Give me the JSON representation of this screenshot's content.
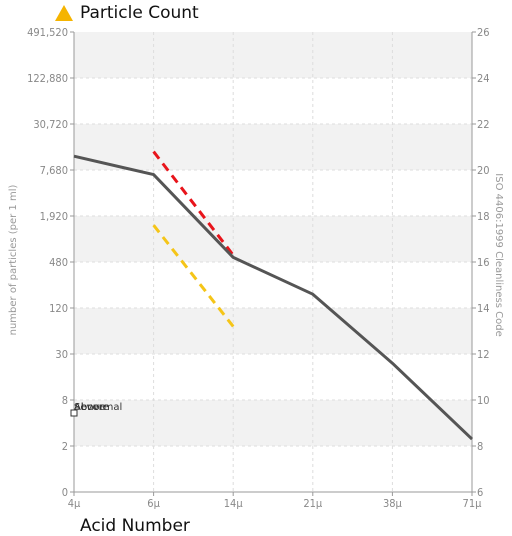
{
  "header": {
    "title": "Particle Count",
    "icon": "warning-triangle-icon",
    "icon_color": "#f5b400"
  },
  "footer": {
    "title": "Acid Number"
  },
  "legend": {
    "labels": [
      "Severe",
      "Abnormal",
      "Above"
    ]
  },
  "colors": {
    "series_line": "#555555",
    "severe_limit": "#e8141b",
    "caution_limit": "#f5c518",
    "band": "#f2f2f2",
    "grid": "#dddddd",
    "axis": "#999999"
  },
  "chart_data": {
    "type": "line",
    "x_categories": [
      "4μ",
      "6μ",
      "14μ",
      "21μ",
      "38μ",
      "71μ"
    ],
    "y_ticks": [
      "0",
      "2",
      "8",
      "30",
      "120",
      "480",
      "1,920",
      "7,680",
      "30,720",
      "122,880",
      "491,520"
    ],
    "y2_ticks": [
      "6",
      "8",
      "10",
      "12",
      "14",
      "16",
      "18",
      "20",
      "22",
      "24",
      "26"
    ],
    "ylabel": "number of particles (per 1 ml)",
    "y2label": "ISO 4406:1999 Cleanliness Code",
    "y2lim": [
      6,
      26
    ],
    "grid": true,
    "series": [
      {
        "values": [
          20.6,
          19.8,
          16.2,
          14.6,
          11.6,
          8.3
        ]
      }
    ],
    "limits": [
      {
        "color": "severe",
        "dash": true,
        "x": [
          "6μ",
          "14μ"
        ],
        "y": [
          20.8,
          16.3
        ]
      },
      {
        "color": "caution",
        "dash": true,
        "x": [
          "6μ",
          "14μ"
        ],
        "y": [
          17.6,
          13.2
        ]
      }
    ]
  }
}
